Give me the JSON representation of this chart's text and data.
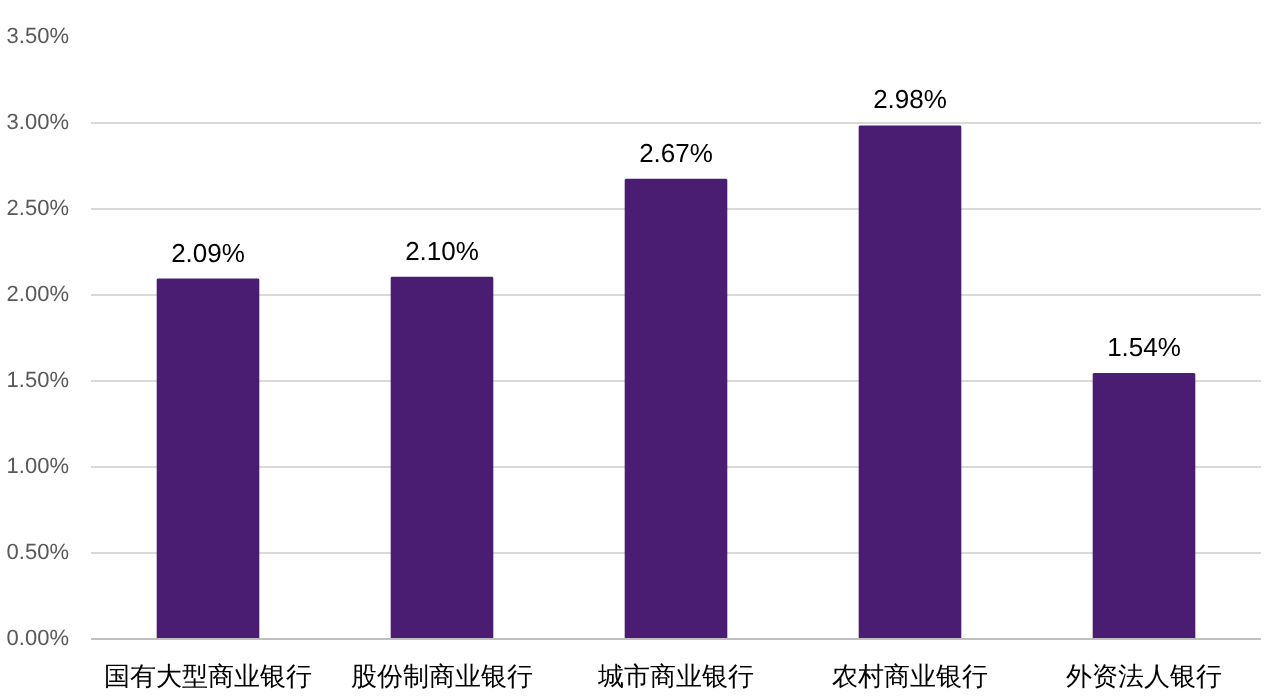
{
  "chart_data": {
    "type": "bar",
    "categories": [
      "国有大型商业银行",
      "股份制商业银行",
      "城市商业银行",
      "农村商业银行",
      "外资法人银行"
    ],
    "values": [
      2.09,
      2.1,
      2.67,
      2.98,
      1.54
    ],
    "value_labels": [
      "2.09%",
      "2.10%",
      "2.67%",
      "2.98%",
      "1.54%"
    ],
    "color": "#4a1c72",
    "ylim": [
      0,
      3.5
    ],
    "yticks": [
      {
        "value": 0,
        "label": "0.00%"
      },
      {
        "value": 0.5,
        "label": "0.50%"
      },
      {
        "value": 1,
        "label": "1.00%"
      },
      {
        "value": 1.5,
        "label": "1.50%"
      },
      {
        "value": 2,
        "label": "2.00%"
      },
      {
        "value": 2.5,
        "label": "2.50%"
      },
      {
        "value": 3,
        "label": "3.00%"
      },
      {
        "value": 3.5,
        "label": "3.50%"
      }
    ],
    "grid": "y"
  }
}
